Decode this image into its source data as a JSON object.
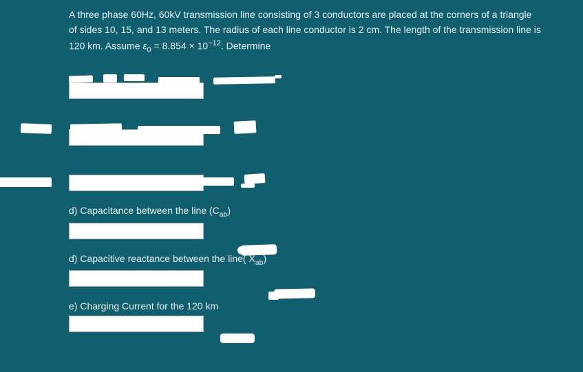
{
  "problem": {
    "line1": "A three phase 60Hz, 60kV  transmission line consisting of 3 conductors are placed at the corners of a triangle",
    "line2": "of sides 10, 15, and 13 meters. The radius of each line conductor is 2 cm. The length of the transmission line is",
    "line3_prefix": "120 km. Assume  ",
    "epsilon": "ε",
    "epsilon_sub": "0",
    "eq": " = 8.854 × 10",
    "exp": "−12",
    "line3_suffix": ". Determine"
  },
  "questions": {
    "d_cap_prefix": "d) Capacitance between the line (C",
    "d_cap_sub": "ab",
    "d_cap_suffix": ") ",
    "d_react_prefix": "d) Capacitive reactance  between the line( X",
    "d_react_sub": "ab",
    "d_react_suffix": ") ",
    "e_text": "e) Charging Current for the 120 km"
  },
  "colors": {
    "background": "#105f6e",
    "text": "#e8f0f2",
    "input_bg": "#ffffff",
    "input_border": "#b0b0b0",
    "whiteout": "#ffffff"
  }
}
